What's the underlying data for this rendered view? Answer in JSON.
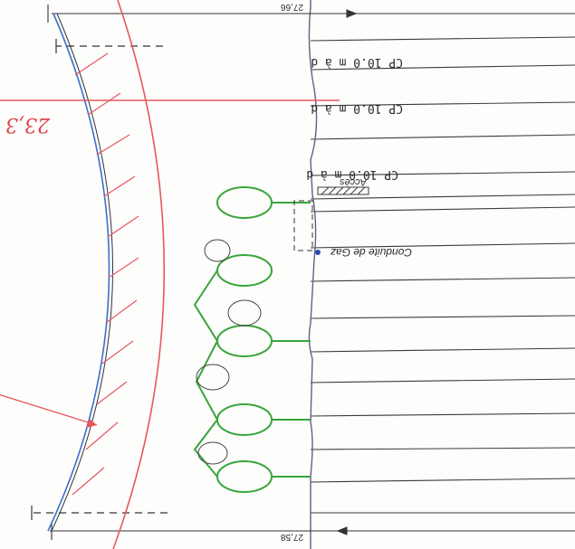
{
  "dimensions": {
    "top": "27,58",
    "bottom": "27,66"
  },
  "handwritten_measure": "23,3",
  "labels": {
    "cp_1": "CP 10.0 m à d",
    "cp_2": "CP 10.0 m à d",
    "cp_3": "CP 10.0 m à d",
    "acces": "Accès",
    "gas": "Conduite de Gaz"
  },
  "colors": {
    "red_curve": "#e8565c",
    "blue_curve": "#3b6fd1",
    "trees": "#3aa43a",
    "purple_boundary": "#7a5c8e",
    "lines": "#333333"
  }
}
